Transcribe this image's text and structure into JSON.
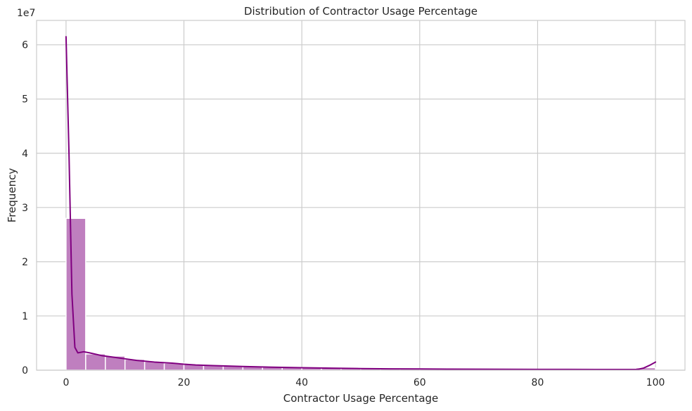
{
  "chart_data": {
    "type": "bar",
    "title": "Distribution of Contractor Usage Percentage",
    "xlabel": "Contractor Usage Percentage",
    "ylabel": "Frequency",
    "y_offset_text": "1e7",
    "xlim": [
      -5,
      105
    ],
    "ylim": [
      0,
      6.45
    ],
    "x_ticks": [
      0,
      20,
      40,
      60,
      80,
      100
    ],
    "y_ticks": [
      0,
      1,
      2,
      3,
      4,
      5,
      6
    ],
    "grid": true,
    "bin_width": 3.333,
    "bins": [
      {
        "x0": 0.0,
        "x1": 3.333,
        "value": 2.8
      },
      {
        "x0": 3.333,
        "x1": 6.667,
        "value": 0.3
      },
      {
        "x0": 6.667,
        "x1": 10.0,
        "value": 0.26
      },
      {
        "x0": 10.0,
        "x1": 13.333,
        "value": 0.2
      },
      {
        "x0": 13.333,
        "x1": 16.667,
        "value": 0.16
      },
      {
        "x0": 16.667,
        "x1": 20.0,
        "value": 0.13
      },
      {
        "x0": 20.0,
        "x1": 23.333,
        "value": 0.11
      },
      {
        "x0": 23.333,
        "x1": 26.667,
        "value": 0.09
      },
      {
        "x0": 26.667,
        "x1": 30.0,
        "value": 0.08
      },
      {
        "x0": 30.0,
        "x1": 33.333,
        "value": 0.07
      },
      {
        "x0": 33.333,
        "x1": 36.667,
        "value": 0.06
      },
      {
        "x0": 36.667,
        "x1": 40.0,
        "value": 0.05
      },
      {
        "x0": 40.0,
        "x1": 43.333,
        "value": 0.045
      },
      {
        "x0": 43.333,
        "x1": 46.667,
        "value": 0.04
      },
      {
        "x0": 46.667,
        "x1": 50.0,
        "value": 0.035
      },
      {
        "x0": 50.0,
        "x1": 53.333,
        "value": 0.03
      },
      {
        "x0": 53.333,
        "x1": 56.667,
        "value": 0.028
      },
      {
        "x0": 56.667,
        "x1": 60.0,
        "value": 0.025
      },
      {
        "x0": 60.0,
        "x1": 63.333,
        "value": 0.023
      },
      {
        "x0": 63.333,
        "x1": 66.667,
        "value": 0.021
      },
      {
        "x0": 66.667,
        "x1": 70.0,
        "value": 0.02
      },
      {
        "x0": 70.0,
        "x1": 73.333,
        "value": 0.019
      },
      {
        "x0": 73.333,
        "x1": 76.667,
        "value": 0.018
      },
      {
        "x0": 76.667,
        "x1": 80.0,
        "value": 0.017
      },
      {
        "x0": 80.0,
        "x1": 83.333,
        "value": 0.016
      },
      {
        "x0": 83.333,
        "x1": 86.667,
        "value": 0.015
      },
      {
        "x0": 86.667,
        "x1": 90.0,
        "value": 0.015
      },
      {
        "x0": 90.0,
        "x1": 93.333,
        "value": 0.014
      },
      {
        "x0": 93.333,
        "x1": 96.667,
        "value": 0.014
      },
      {
        "x0": 96.667,
        "x1": 100.0,
        "value": 0.045
      }
    ],
    "kde": {
      "x": [
        0,
        0.5,
        1,
        1.5,
        2,
        3,
        4,
        6,
        8,
        10,
        12,
        15,
        18,
        20,
        22,
        25,
        28,
        30,
        35,
        40,
        45,
        50,
        55,
        60,
        65,
        70,
        75,
        80,
        85,
        90,
        95,
        97,
        98,
        99,
        100
      ],
      "y": [
        6.15,
        4.0,
        1.4,
        0.42,
        0.32,
        0.34,
        0.32,
        0.27,
        0.24,
        0.21,
        0.18,
        0.15,
        0.13,
        0.11,
        0.095,
        0.085,
        0.075,
        0.068,
        0.055,
        0.045,
        0.037,
        0.03,
        0.025,
        0.022,
        0.02,
        0.018,
        0.016,
        0.015,
        0.014,
        0.013,
        0.013,
        0.015,
        0.04,
        0.09,
        0.15
      ]
    },
    "colors": {
      "bar_fill": "#bf7fbf",
      "bar_edge": "#ffffff",
      "kde_line": "#800080",
      "grid": "#cccccc",
      "spine": "#cccccc",
      "text": "#262626"
    }
  }
}
